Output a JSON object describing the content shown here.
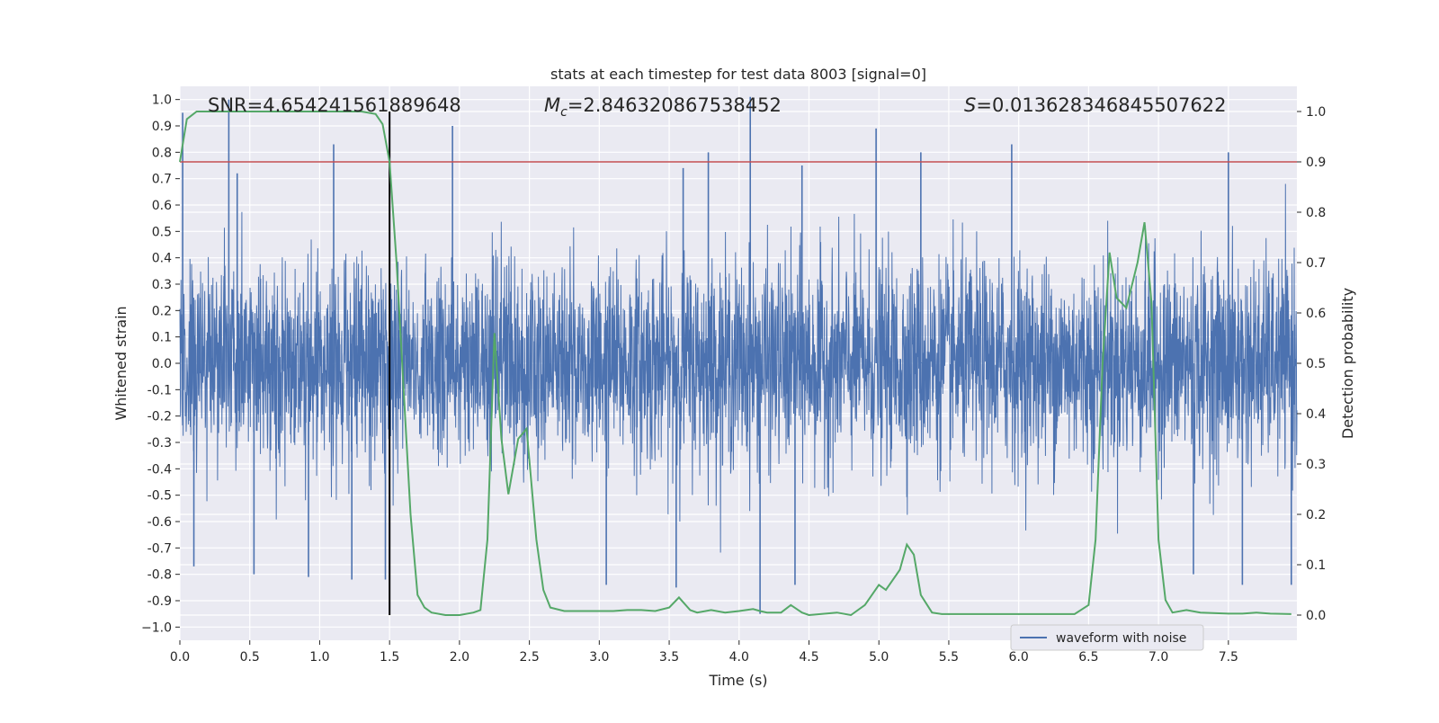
{
  "chart_data": {
    "type": "line",
    "title": "stats at each timestep for test data 8003 [signal=0]",
    "xlabel": "Time (s)",
    "ylabel_left": "Whitened strain",
    "ylabel_right": "Detection probability",
    "xlim": [
      0,
      7.99
    ],
    "ylim_left": [
      -1.05,
      1.05
    ],
    "ylim_right": [
      -0.05,
      1.05
    ],
    "x_ticks": [
      "0.0",
      "0.5",
      "1.0",
      "1.5",
      "2.0",
      "2.5",
      "3.0",
      "3.5",
      "4.0",
      "4.5",
      "5.0",
      "5.5",
      "6.0",
      "6.5",
      "7.0",
      "7.5"
    ],
    "x_tick_values": [
      0,
      0.5,
      1,
      1.5,
      2,
      2.5,
      3,
      3.5,
      4,
      4.5,
      5,
      5.5,
      6,
      6.5,
      7,
      7.5
    ],
    "y_ticks_left": [
      "1.0",
      "0.9",
      "0.8",
      "0.7",
      "0.6",
      "0.5",
      "0.4",
      "0.3",
      "0.2",
      "0.1",
      "0.0",
      "-0.1",
      "-0.2",
      "-0.3",
      "-0.4",
      "-0.5",
      "-0.6",
      "-0.7",
      "-0.8",
      "-0.9",
      "−1.0"
    ],
    "y_tick_values_left": [
      1.0,
      0.9,
      0.8,
      0.7,
      0.6,
      0.5,
      0.4,
      0.3,
      0.2,
      0.1,
      0.0,
      -0.1,
      -0.2,
      -0.3,
      -0.4,
      -0.5,
      -0.6,
      -0.7,
      -0.8,
      -0.9,
      -1.0
    ],
    "y_ticks_right": [
      "1.0",
      "0.9",
      "0.8",
      "0.7",
      "0.6",
      "0.5",
      "0.4",
      "0.3",
      "0.2",
      "0.1",
      "0.0"
    ],
    "y_tick_values_right": [
      1.0,
      0.9,
      0.8,
      0.7,
      0.6,
      0.5,
      0.4,
      0.3,
      0.2,
      0.1,
      0.0
    ],
    "grid": true,
    "annotations": {
      "snr": "SNR=4.654241561889648",
      "mc_symbol": "M",
      "mc_sub": "c",
      "mc_value": "=2.846320867538452",
      "s_symbol": "S",
      "s_value": "=0.013628346845507622"
    },
    "threshold_line": {
      "value_right": 0.9,
      "color": "#c44e52"
    },
    "vertical_marker": {
      "x": 1.5,
      "y_from_right": 0.0,
      "y_to_right": 1.0,
      "color": "#000000"
    },
    "legend": {
      "position": "lower-right",
      "entries": [
        "waveform with noise"
      ]
    },
    "series": [
      {
        "name": "waveform with noise",
        "axis": "left",
        "color": "#4c72b0",
        "sample_rate_hz": 512,
        "typical_amplitude": 0.42,
        "spikes": [
          {
            "x": 0.02,
            "y": 0.95
          },
          {
            "x": 0.35,
            "y": 1.0
          },
          {
            "x": 0.41,
            "y": 0.72
          },
          {
            "x": 1.1,
            "y": 0.83
          },
          {
            "x": 1.95,
            "y": 0.9
          },
          {
            "x": 3.6,
            "y": 0.74
          },
          {
            "x": 3.78,
            "y": 0.8
          },
          {
            "x": 4.08,
            "y": 1.01
          },
          {
            "x": 4.45,
            "y": 0.75
          },
          {
            "x": 4.98,
            "y": 0.89
          },
          {
            "x": 5.3,
            "y": 0.8
          },
          {
            "x": 5.95,
            "y": 0.83
          },
          {
            "x": 7.5,
            "y": 0.8
          },
          {
            "x": 0.1,
            "y": -0.77
          },
          {
            "x": 0.53,
            "y": -0.8
          },
          {
            "x": 0.92,
            "y": -0.81
          },
          {
            "x": 1.23,
            "y": -0.82
          },
          {
            "x": 1.47,
            "y": -0.82
          },
          {
            "x": 3.05,
            "y": -0.84
          },
          {
            "x": 3.55,
            "y": -0.85
          },
          {
            "x": 4.15,
            "y": -0.95
          },
          {
            "x": 4.4,
            "y": -0.84
          },
          {
            "x": 7.25,
            "y": -0.8
          },
          {
            "x": 7.6,
            "y": -0.84
          },
          {
            "x": 7.95,
            "y": -0.84
          }
        ]
      },
      {
        "name": "",
        "axis": "right",
        "color": "#55a868",
        "x": [
          0.0,
          0.05,
          0.12,
          0.2,
          0.3,
          0.5,
          0.7,
          0.9,
          1.1,
          1.3,
          1.4,
          1.45,
          1.5,
          1.55,
          1.6,
          1.65,
          1.7,
          1.75,
          1.8,
          1.9,
          2.0,
          2.1,
          2.15,
          2.2,
          2.25,
          2.3,
          2.35,
          2.42,
          2.48,
          2.55,
          2.6,
          2.65,
          2.75,
          2.9,
          3.0,
          3.1,
          3.2,
          3.3,
          3.4,
          3.5,
          3.57,
          3.65,
          3.7,
          3.8,
          3.9,
          4.0,
          4.1,
          4.15,
          4.2,
          4.3,
          4.37,
          4.45,
          4.5,
          4.7,
          4.8,
          4.9,
          5.0,
          5.05,
          5.15,
          5.2,
          5.25,
          5.3,
          5.38,
          5.45,
          5.6,
          5.8,
          6.0,
          6.2,
          6.4,
          6.5,
          6.55,
          6.6,
          6.65,
          6.7,
          6.77,
          6.85,
          6.9,
          6.95,
          7.0,
          7.05,
          7.1,
          7.2,
          7.3,
          7.5,
          7.6,
          7.7,
          7.8,
          7.95
        ],
        "values": [
          0.9,
          0.985,
          1.0,
          1.0,
          1.0,
          1.0,
          1.0,
          1.0,
          1.0,
          1.0,
          0.995,
          0.975,
          0.9,
          0.7,
          0.45,
          0.2,
          0.04,
          0.015,
          0.005,
          0.0,
          0.0,
          0.005,
          0.01,
          0.15,
          0.56,
          0.35,
          0.24,
          0.35,
          0.37,
          0.15,
          0.05,
          0.015,
          0.008,
          0.008,
          0.008,
          0.008,
          0.01,
          0.01,
          0.008,
          0.015,
          0.035,
          0.01,
          0.005,
          0.01,
          0.005,
          0.008,
          0.012,
          0.008,
          0.005,
          0.005,
          0.02,
          0.005,
          0.0,
          0.005,
          0.0,
          0.02,
          0.06,
          0.05,
          0.09,
          0.14,
          0.12,
          0.04,
          0.005,
          0.002,
          0.002,
          0.002,
          0.002,
          0.002,
          0.002,
          0.02,
          0.15,
          0.5,
          0.72,
          0.63,
          0.61,
          0.7,
          0.78,
          0.62,
          0.15,
          0.03,
          0.005,
          0.01,
          0.005,
          0.003,
          0.003,
          0.005,
          0.003,
          0.002
        ]
      }
    ]
  }
}
